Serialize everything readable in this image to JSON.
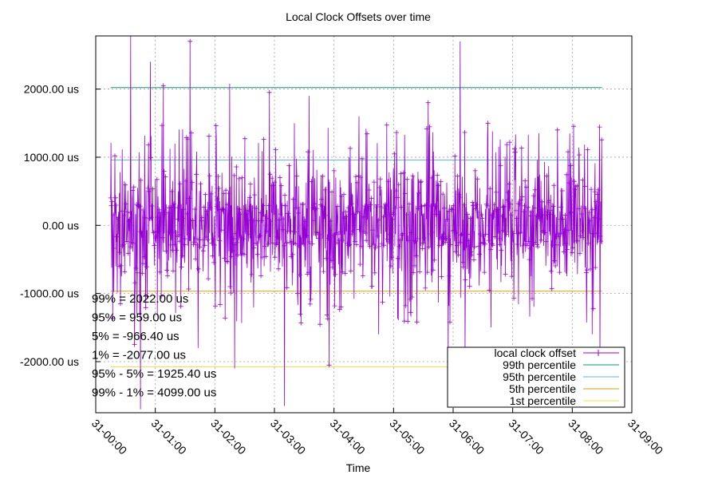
{
  "chart_data": {
    "type": "line",
    "title": "Local Clock Offsets over time",
    "xlabel": "Time",
    "ylabel": "",
    "x_range": [
      "31-00:00",
      "31-09:00"
    ],
    "ylim": [
      -2750,
      2780
    ],
    "x_tick_labels": [
      "31-00:00",
      "31-01:00",
      "31-02:00",
      "31-03:00",
      "31-04:00",
      "31-05:00",
      "31-06:00",
      "31-07:00",
      "31-08:00",
      "31-09:00"
    ],
    "y_ticks": [
      {
        "value": 2000,
        "label": "2000.00 us"
      },
      {
        "value": 1000,
        "label": "1000.00 us"
      },
      {
        "value": 0,
        "label": "0.00 us"
      },
      {
        "value": -1000,
        "label": "-1000.00 us"
      },
      {
        "value": -2000,
        "label": "-2000.00 us"
      }
    ],
    "grid": true,
    "legend_position": "bottom-right",
    "series": [
      {
        "name": "local clock offset",
        "color": "#9400d3",
        "style": "line-with-points"
      },
      {
        "name": "99th percentile",
        "value": 2022.0,
        "color": "#009e73",
        "style": "line"
      },
      {
        "name": "95th percentile",
        "value": 959.0,
        "color": "#56b4e9",
        "style": "line"
      },
      {
        "name": "5th percentile",
        "value": -966.4,
        "color": "#e69f00",
        "style": "line"
      },
      {
        "name": "1st percentile",
        "value": -2077.0,
        "color": "#f0e442",
        "style": "line"
      }
    ],
    "offset_series": {
      "x_start": "31-00:15",
      "x_end": "31-08:30",
      "peaks": [
        {
          "x": "31-00:35",
          "y": 2780
        },
        {
          "x": "31-00:39",
          "y": -1750
        },
        {
          "x": "31-00:45",
          "y": -2700
        },
        {
          "x": "31-00:55",
          "y": 2400
        },
        {
          "x": "31-01:08",
          "y": 2050
        },
        {
          "x": "31-01:35",
          "y": 2700
        },
        {
          "x": "31-01:43",
          "y": -1800
        },
        {
          "x": "31-02:15",
          "y": 2080
        },
        {
          "x": "31-02:20",
          "y": -2100
        },
        {
          "x": "31-02:55",
          "y": 1950
        },
        {
          "x": "31-03:10",
          "y": -2650
        },
        {
          "x": "31-03:20",
          "y": 1500
        },
        {
          "x": "31-03:35",
          "y": 1900
        },
        {
          "x": "31-03:55",
          "y": -2050
        },
        {
          "x": "31-04:25",
          "y": 1600
        },
        {
          "x": "31-04:45",
          "y": -1600
        },
        {
          "x": "31-05:35",
          "y": 1800
        },
        {
          "x": "31-05:55",
          "y": -2100
        },
        {
          "x": "31-06:07",
          "y": 2700
        },
        {
          "x": "31-06:12",
          "y": -1900
        },
        {
          "x": "31-06:35",
          "y": 1500
        },
        {
          "x": "31-07:45",
          "y": 1400
        },
        {
          "x": "31-08:20",
          "y": -1600
        },
        {
          "x": "31-08:28",
          "y": -2050
        }
      ]
    },
    "annotations": [
      "99% = 2022.00 us",
      "95% = 959.00 us",
      " 5% = -966.40 us",
      " 1% = -2077.00 us",
      "95% - 5% = 1925.40 us",
      "99% - 1% = 4099.00 us"
    ]
  }
}
